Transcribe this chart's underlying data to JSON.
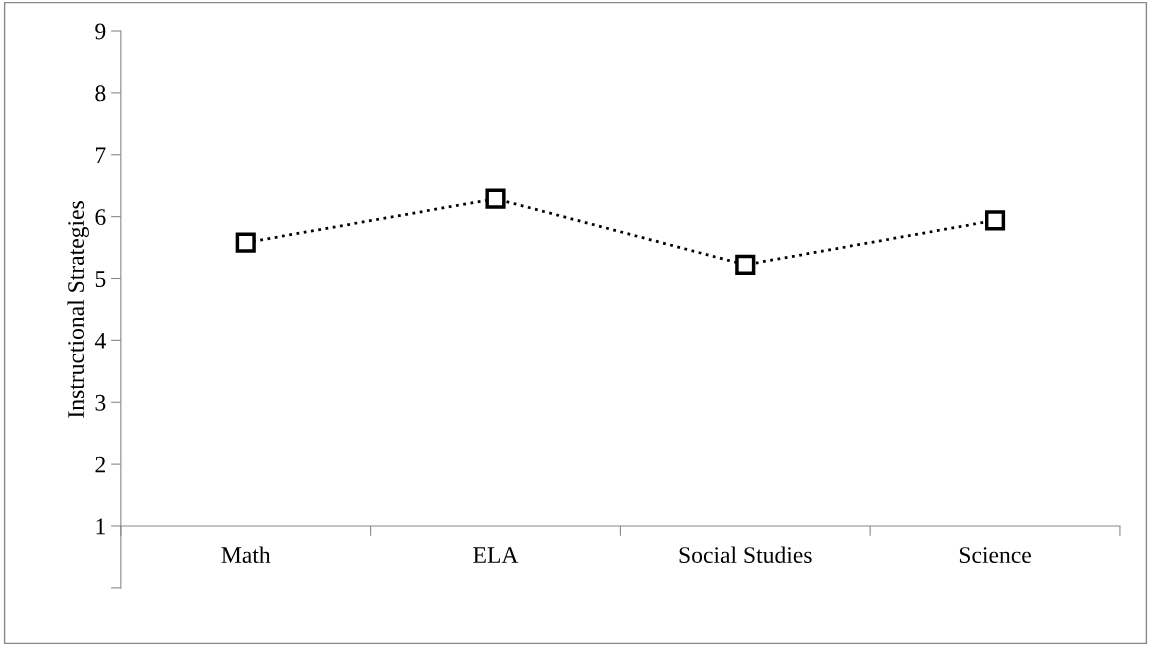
{
  "chart_data": {
    "type": "line",
    "ylabel": "Instructional Strategies",
    "categories": [
      "Math",
      "ELA",
      "Social Studies",
      "Science"
    ],
    "series": [
      {
        "color": "#000000",
        "values": [
          5.58,
          6.29,
          5.22,
          5.94
        ]
      }
    ],
    "ylim": [
      0,
      9
    ],
    "yticks": [
      {
        "value": 0,
        "label": null
      },
      1,
      2,
      3,
      4,
      5,
      6,
      7,
      8,
      9
    ],
    "marker": "square",
    "line_style": "dotted",
    "grid": false,
    "legend": false
  }
}
